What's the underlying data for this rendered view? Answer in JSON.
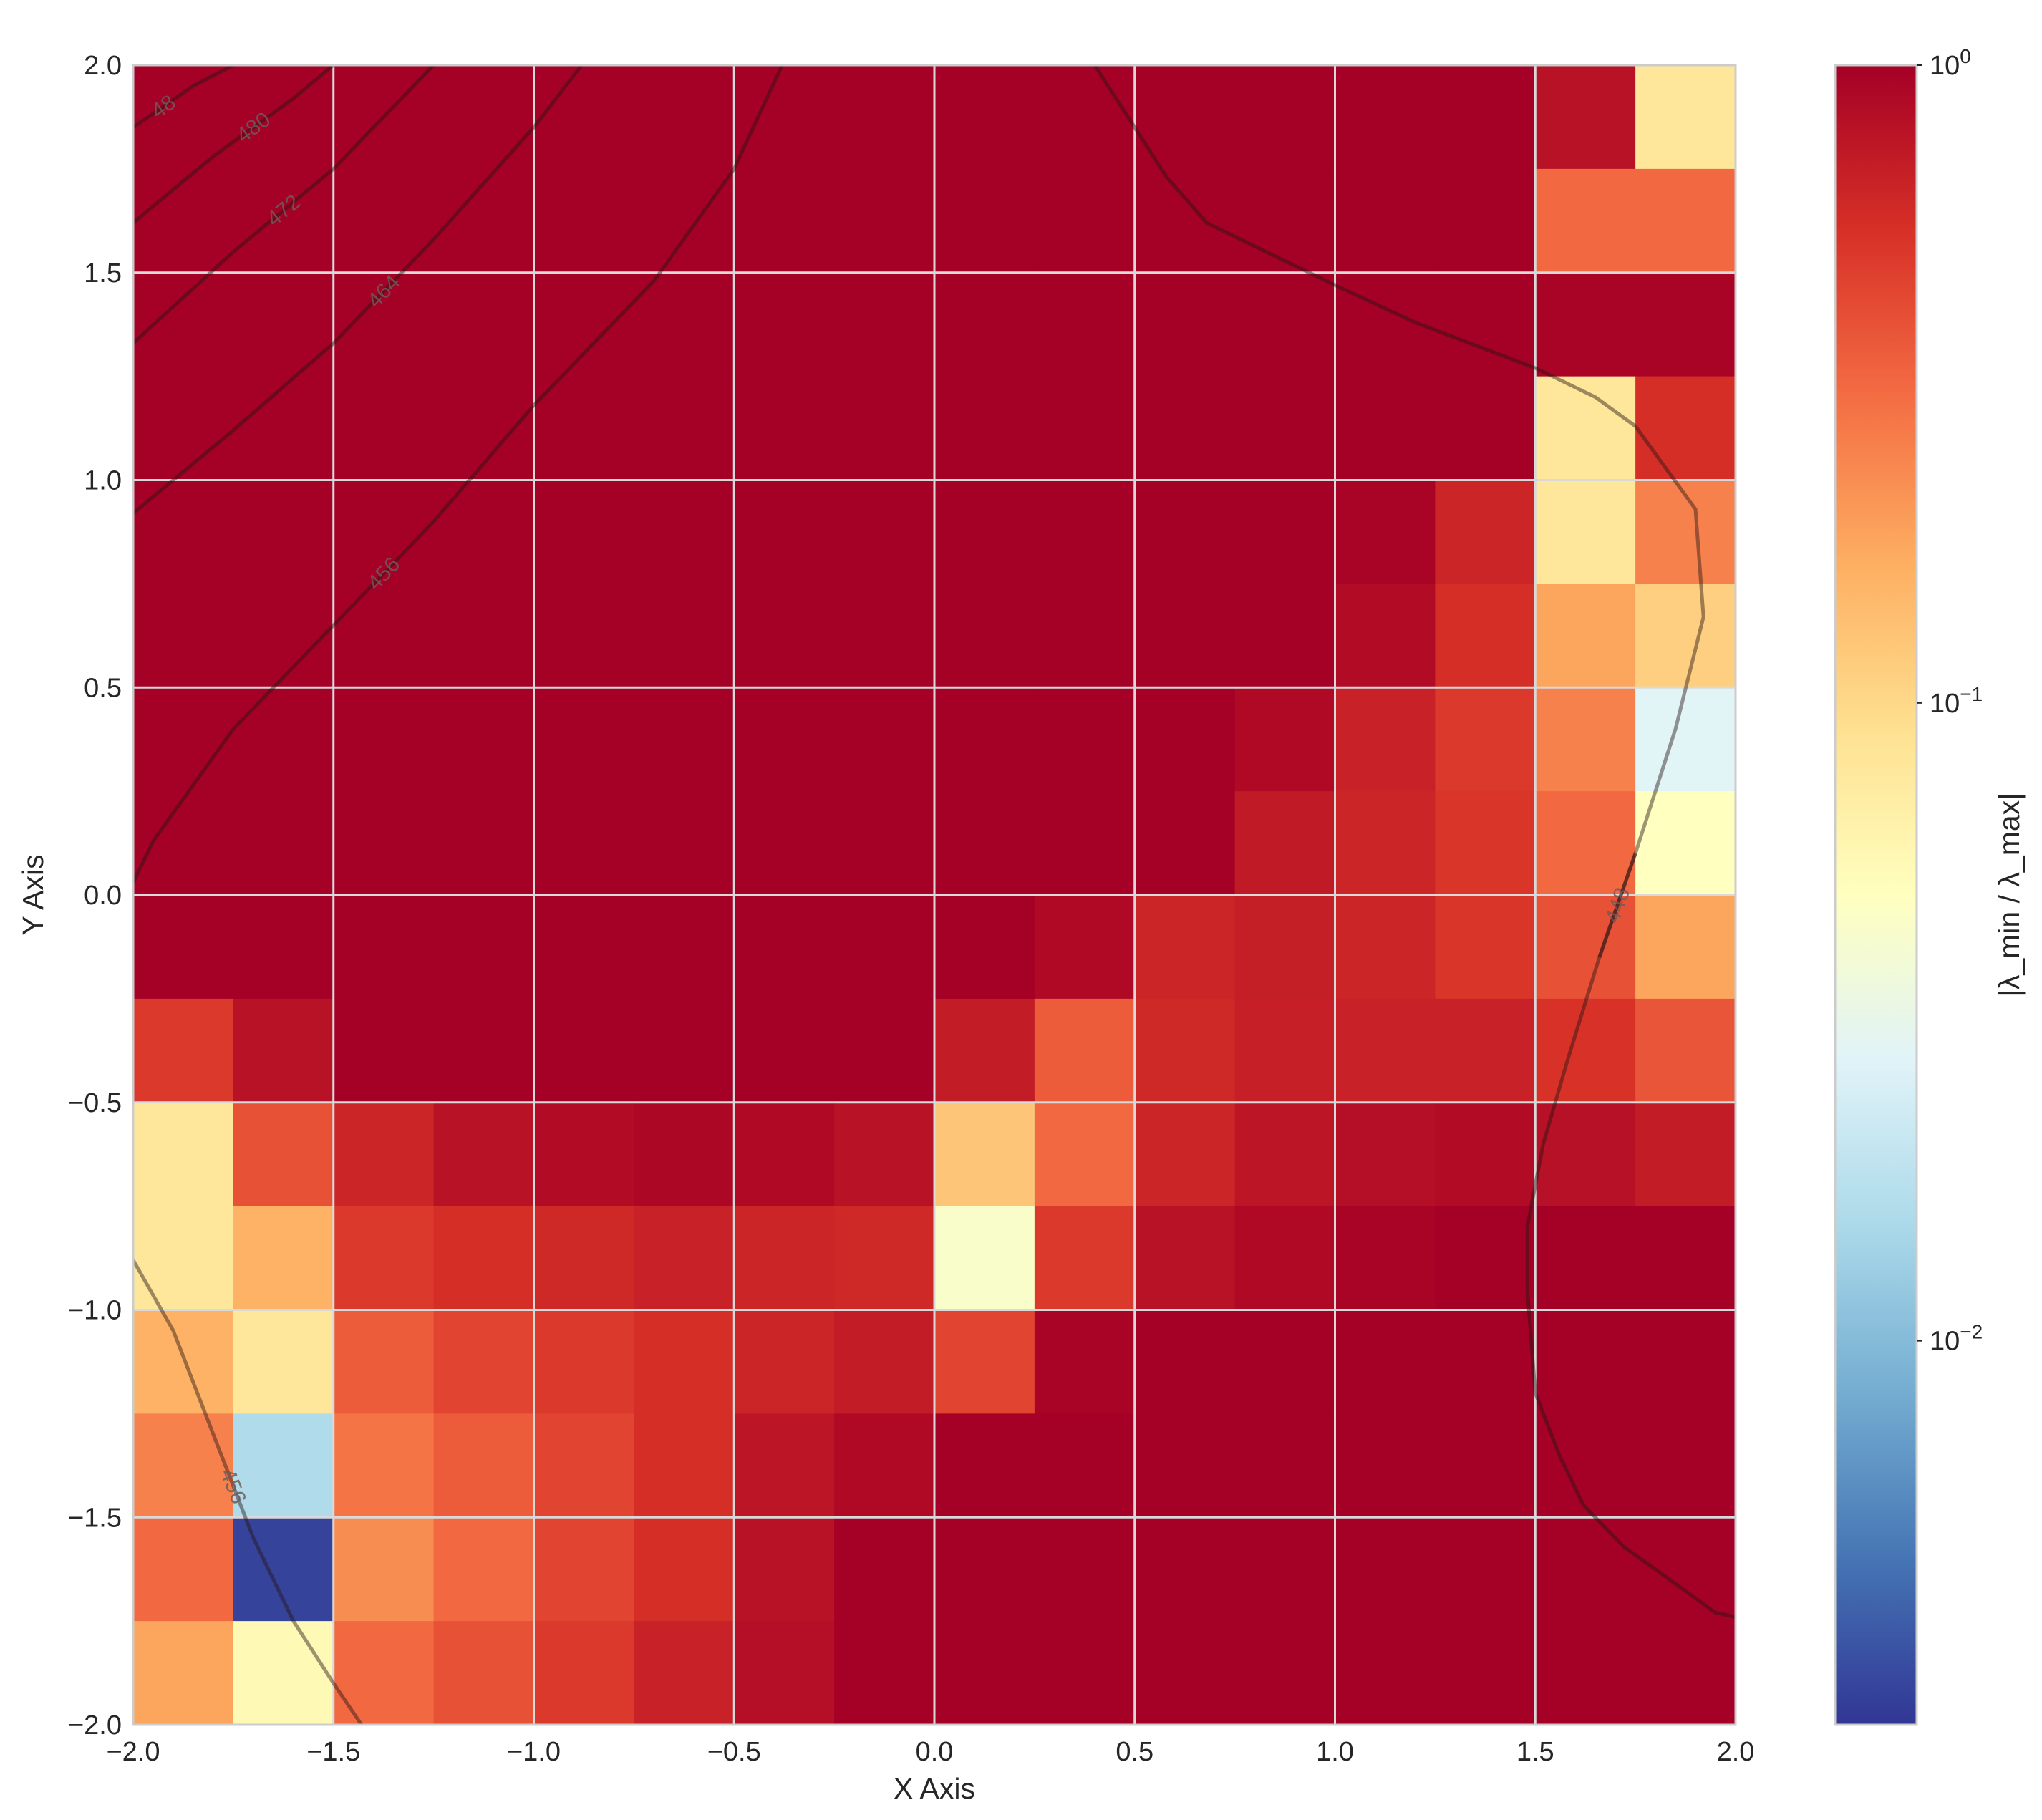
{
  "chart_data": {
    "type": "heatmap",
    "title": "",
    "xlabel": "X Axis",
    "ylabel": "Y Axis",
    "xlim": [
      -2.0,
      2.0
    ],
    "ylim": [
      -2.0,
      2.0
    ],
    "x_ticks": [
      "−2.0",
      "−1.5",
      "−1.0",
      "−0.5",
      "0.0",
      "0.5",
      "1.0",
      "1.5",
      "2.0"
    ],
    "y_ticks": [
      "2.0",
      "1.5",
      "1.0",
      "0.5",
      "0.0",
      "−0.5",
      "−1.0",
      "−1.5",
      "−2.0"
    ],
    "grid": true,
    "x_edges": [
      -2.0,
      -1.75,
      -1.5,
      -1.25,
      -1.0,
      -0.75,
      -0.5,
      -0.25,
      0.0,
      0.25,
      0.5,
      0.75,
      1.0,
      1.25,
      1.5,
      1.75,
      2.0
    ],
    "y_edges": [
      2.0,
      1.75,
      1.5,
      1.25,
      1.0,
      0.75,
      0.5,
      0.25,
      0.0,
      -0.25,
      -0.5,
      -0.75,
      -1.0,
      -1.25,
      -1.5,
      -1.75,
      -2.0
    ],
    "values_log10": [
      [
        0,
        0,
        0,
        0,
        0,
        0,
        0,
        0,
        0,
        0,
        0,
        0,
        0,
        0,
        -0.1,
        -1.1
      ],
      [
        0,
        0,
        0,
        0,
        0,
        0,
        0,
        0,
        0,
        0,
        0,
        0,
        0,
        0,
        -0.5,
        -0.5
      ],
      [
        0,
        0,
        0,
        0,
        0,
        0,
        0,
        0,
        0,
        0,
        0,
        0,
        0,
        0,
        -0.02,
        -0.02
      ],
      [
        0,
        0,
        0,
        0,
        0,
        0,
        0,
        0,
        0,
        0,
        0,
        0,
        0,
        0,
        -1.1,
        -0.25
      ],
      [
        0,
        0,
        0,
        0,
        0,
        0,
        0,
        0,
        0,
        0,
        0,
        0,
        -0.02,
        -0.2,
        -1.1,
        -0.6
      ],
      [
        0,
        0,
        0,
        0,
        0,
        0,
        0,
        0,
        0,
        0,
        0,
        0,
        -0.06,
        -0.25,
        -0.75,
        -0.95
      ],
      [
        0,
        0,
        0,
        0,
        0,
        0,
        0,
        0,
        0,
        0,
        0,
        -0.05,
        -0.18,
        -0.3,
        -0.6,
        -1.55
      ],
      [
        0,
        0,
        0,
        0,
        0,
        0,
        0,
        0,
        0,
        0,
        0,
        -0.14,
        -0.2,
        -0.28,
        -0.5,
        -1.3
      ],
      [
        0,
        0,
        0,
        0,
        0,
        0,
        0,
        0,
        0,
        -0.05,
        -0.2,
        -0.16,
        -0.2,
        -0.28,
        -0.4,
        -0.75
      ],
      [
        -0.3,
        -0.1,
        0,
        0,
        0,
        0,
        0,
        0,
        -0.15,
        -0.45,
        -0.22,
        -0.17,
        -0.18,
        -0.18,
        -0.27,
        -0.42
      ],
      [
        -1.1,
        -0.4,
        -0.2,
        -0.1,
        -0.06,
        -0.04,
        -0.05,
        -0.1,
        -0.9,
        -0.5,
        -0.2,
        -0.12,
        -0.08,
        -0.06,
        -0.09,
        -0.15
      ],
      [
        -1.1,
        -0.8,
        -0.3,
        -0.25,
        -0.22,
        -0.18,
        -0.2,
        -0.22,
        -1.35,
        -0.3,
        -0.1,
        -0.05,
        -0.02,
        0,
        0,
        0
      ],
      [
        -0.8,
        -1.1,
        -0.45,
        -0.35,
        -0.3,
        -0.25,
        -0.2,
        -0.15,
        -0.35,
        -0.02,
        0,
        0,
        0,
        0,
        0,
        0
      ],
      [
        -0.6,
        -1.8,
        -0.55,
        -0.45,
        -0.35,
        -0.25,
        -0.12,
        -0.05,
        0,
        0,
        0,
        0,
        0,
        0,
        0,
        0
      ],
      [
        -0.5,
        -2.55,
        -0.65,
        -0.5,
        -0.35,
        -0.25,
        -0.1,
        0,
        0,
        0,
        0,
        0,
        0,
        0,
        0,
        0
      ],
      [
        -0.75,
        -1.25,
        -0.5,
        -0.4,
        -0.3,
        -0.18,
        -0.08,
        0,
        0,
        0,
        0,
        0,
        0,
        0,
        0,
        0
      ]
    ],
    "colorbar": {
      "label": "|λ_min / λ_max|",
      "scale": "log",
      "range": [
        0.0025,
        1.0
      ],
      "ticks": [
        {
          "base": "10",
          "exp": "0",
          "value": 1.0
        },
        {
          "base": "10",
          "exp": "−1",
          "value": 0.1
        },
        {
          "base": "10",
          "exp": "−2",
          "value": 0.01
        }
      ],
      "colormap": "RdYlBu_r"
    },
    "contours": [
      {
        "label": "48",
        "points": [
          [
            -2.0,
            1.85
          ],
          [
            -1.85,
            1.95
          ],
          [
            -1.75,
            2.0
          ]
        ]
      },
      {
        "label": "480",
        "points": [
          [
            -2.0,
            1.62
          ],
          [
            -1.8,
            1.78
          ],
          [
            -1.6,
            1.92
          ],
          [
            -1.5,
            2.0
          ]
        ]
      },
      {
        "label": "472",
        "points": [
          [
            -2.0,
            1.33
          ],
          [
            -1.75,
            1.55
          ],
          [
            -1.5,
            1.75
          ],
          [
            -1.25,
            2.0
          ]
        ]
      },
      {
        "label": "464",
        "points": [
          [
            -2.0,
            0.92
          ],
          [
            -1.75,
            1.12
          ],
          [
            -1.5,
            1.33
          ],
          [
            -1.25,
            1.58
          ],
          [
            -1.0,
            1.85
          ],
          [
            -0.88,
            2.0
          ]
        ]
      },
      {
        "label": "456",
        "points": [
          [
            -2.0,
            0.03
          ],
          [
            -1.95,
            0.13
          ],
          [
            -1.75,
            0.4
          ],
          [
            -1.5,
            0.65
          ],
          [
            -1.25,
            0.9
          ],
          [
            -1.0,
            1.18
          ],
          [
            -0.7,
            1.48
          ],
          [
            -0.5,
            1.75
          ],
          [
            -0.38,
            2.0
          ]
        ]
      },
      {
        "label": "",
        "points": [
          [
            0.4,
            2.0
          ],
          [
            0.5,
            1.85
          ],
          [
            0.58,
            1.73
          ],
          [
            0.68,
            1.62
          ],
          [
            0.85,
            1.54
          ],
          [
            1.0,
            1.47
          ],
          [
            1.2,
            1.38
          ],
          [
            1.5,
            1.27
          ],
          [
            1.65,
            1.2
          ],
          [
            1.75,
            1.13
          ],
          [
            1.9,
            0.93
          ],
          [
            1.92,
            0.67
          ],
          [
            1.85,
            0.4
          ],
          [
            1.75,
            0.1
          ],
          [
            1.66,
            -0.15
          ],
          [
            1.58,
            -0.4
          ],
          [
            1.52,
            -0.6
          ],
          [
            1.48,
            -0.8
          ],
          [
            1.48,
            -0.95
          ],
          [
            1.5,
            -1.2
          ],
          [
            1.56,
            -1.35
          ],
          [
            1.62,
            -1.47
          ],
          [
            1.72,
            -1.57
          ],
          [
            1.85,
            -1.66
          ],
          [
            1.95,
            -1.73
          ],
          [
            2.0,
            -1.74
          ]
        ]
      },
      {
        "label": "448",
        "points": [
          [
            1.75,
            0.1
          ],
          [
            1.66,
            -0.15
          ]
        ]
      },
      {
        "label": "456",
        "points": [
          [
            -2.0,
            -0.88
          ],
          [
            -1.9,
            -1.05
          ],
          [
            -1.8,
            -1.3
          ],
          [
            -1.7,
            -1.55
          ],
          [
            -1.6,
            -1.75
          ],
          [
            -1.5,
            -1.9
          ],
          [
            -1.43,
            -2.0
          ]
        ]
      }
    ]
  }
}
